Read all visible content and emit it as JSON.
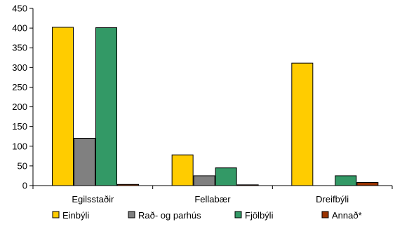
{
  "chart_data": {
    "type": "bar",
    "categories": [
      "Egilsstaðir",
      "Fellabær",
      "Dreifbýli"
    ],
    "series": [
      {
        "name": "Einbýli",
        "values": [
          402,
          78,
          311
        ],
        "color": "#FFCC00"
      },
      {
        "name": "Rað- og parhús",
        "values": [
          120,
          25,
          0
        ],
        "color": "#808080"
      },
      {
        "name": "Fjölbýli",
        "values": [
          401,
          45,
          25
        ],
        "color": "#339966"
      },
      {
        "name": "Annað*",
        "values": [
          3,
          2,
          8
        ],
        "color": "#993300"
      }
    ],
    "ylim": [
      0,
      450
    ],
    "yticks": [
      0,
      50,
      100,
      150,
      200,
      250,
      300,
      350,
      400,
      450
    ],
    "grid": false,
    "legend_position": "bottom"
  }
}
